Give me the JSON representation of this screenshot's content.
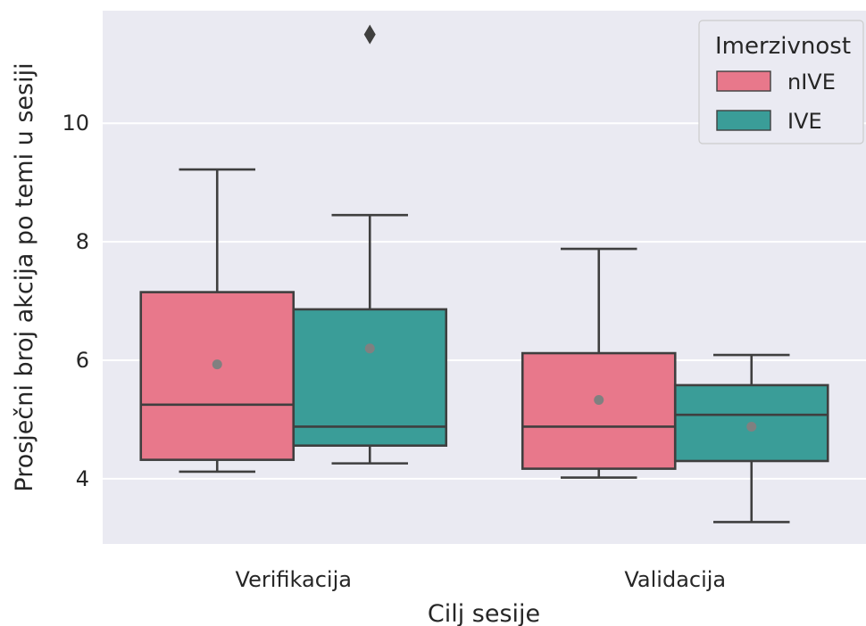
{
  "chart_data": {
    "type": "box",
    "title": "",
    "xlabel": "Cilj sesije",
    "ylabel": "Prosječni broj akcija po temi u sesiji",
    "categories": [
      "Verifikacija",
      "Validacija"
    ],
    "ylim": [
      2.9,
      11.9
    ],
    "yticks": [
      4,
      6,
      8,
      10
    ],
    "grid": true,
    "background": "#EAEAF2",
    "legend": {
      "title": "Imerzivnost",
      "position": "top-right"
    },
    "series": [
      {
        "name": "nIVE",
        "color": "#E8788B",
        "boxes": [
          {
            "category": "Verifikacija",
            "whisker_low": 4.12,
            "q1": 4.32,
            "median": 5.25,
            "q3": 7.15,
            "whisker_high": 9.22,
            "mean": 5.93,
            "outliers": []
          },
          {
            "category": "Validacija",
            "whisker_low": 4.02,
            "q1": 4.17,
            "median": 4.88,
            "q3": 6.12,
            "whisker_high": 7.88,
            "mean": 5.33,
            "outliers": []
          }
        ]
      },
      {
        "name": "IVE",
        "color": "#3A9D98",
        "boxes": [
          {
            "category": "Verifikacija",
            "whisker_low": 4.26,
            "q1": 4.56,
            "median": 4.88,
            "q3": 6.86,
            "whisker_high": 8.45,
            "mean": 6.2,
            "outliers": [
              11.5
            ]
          },
          {
            "category": "Validacija",
            "whisker_low": 3.27,
            "q1": 4.3,
            "median": 5.08,
            "q3": 5.58,
            "whisker_high": 6.09,
            "mean": 4.88,
            "outliers": []
          }
        ]
      }
    ]
  }
}
